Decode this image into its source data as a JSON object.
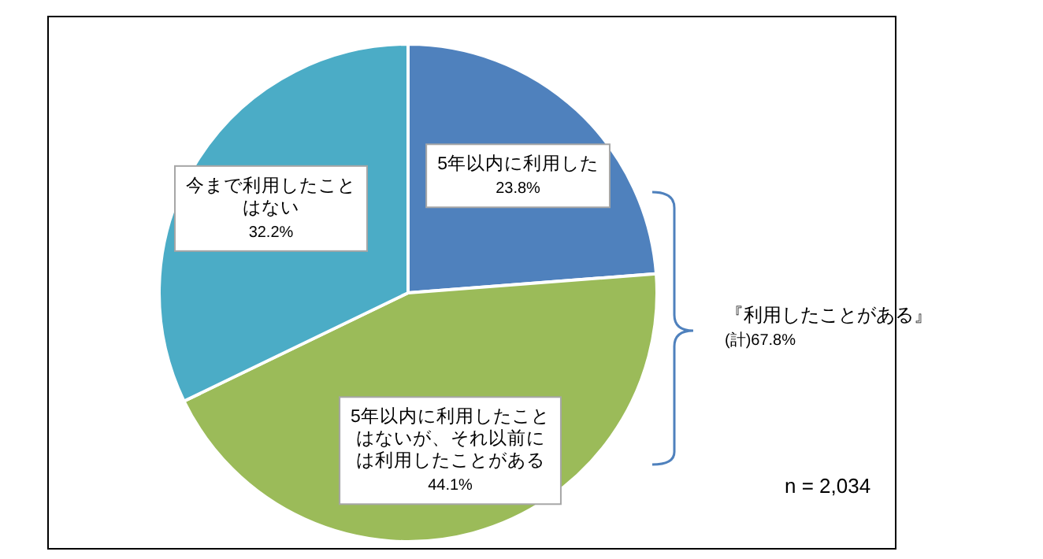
{
  "chart_data": {
    "type": "pie",
    "categories": [
      "5年以内に利用した",
      "5年以内に利用したことはないが、それ以前には利用したことがある",
      "今まで利用したことはない"
    ],
    "values": [
      23.8,
      44.1,
      32.2
    ],
    "colors": [
      "#4f81bd",
      "#9bbb59",
      "#4bacc6"
    ],
    "value_labels": [
      "23.8%",
      "44.1%",
      "32.2%"
    ],
    "annotations": [
      "『利用したことがある』",
      "(計)67.8%",
      "n = 2,034"
    ]
  }
}
